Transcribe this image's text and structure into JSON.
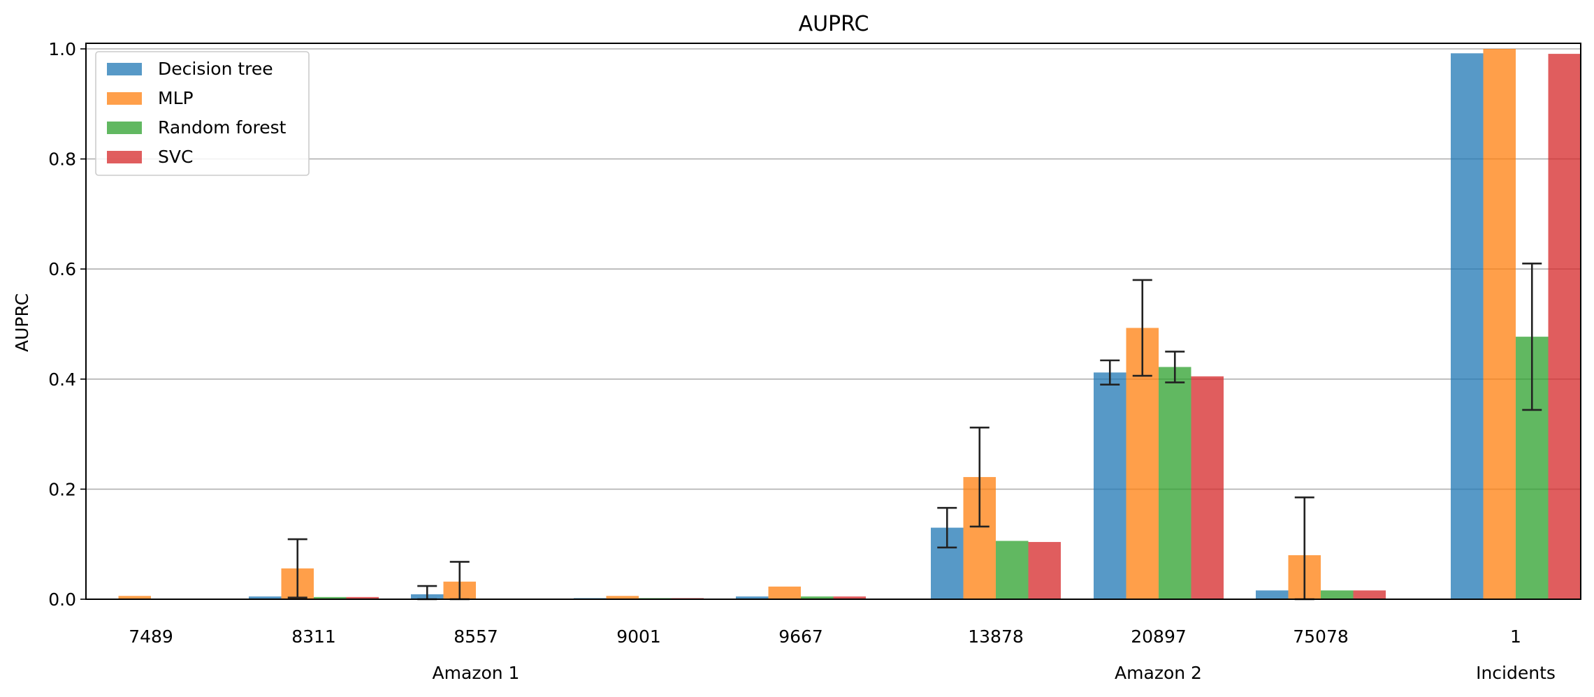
{
  "chart_data": {
    "type": "bar",
    "title": "AUPRC",
    "ylabel": "AUPRC",
    "xlabel": "",
    "ylim": [
      0,
      1.0
    ],
    "yticks": [
      "0.0",
      "0.2",
      "0.4",
      "0.6",
      "0.8",
      "1.0"
    ],
    "grid": "y",
    "legend_position": "top-left",
    "categories": [
      "7489",
      "8311",
      "8557",
      "9001",
      "9667",
      "13878",
      "20897",
      "75078",
      "1"
    ],
    "groups": [
      {
        "label": "Amazon 1",
        "categories": [
          "7489",
          "8311",
          "8557",
          "9001",
          "9667"
        ]
      },
      {
        "label": "Amazon 2",
        "categories": [
          "13878",
          "20897",
          "75078"
        ]
      },
      {
        "label": "Incidents",
        "categories": [
          "1"
        ]
      }
    ],
    "series": [
      {
        "name": "Decision tree",
        "color": "#1f77b4",
        "values": [
          0.001,
          0.005,
          0.009,
          0.002,
          0.005,
          0.13,
          0.412,
          0.016,
          0.992
        ],
        "errors": [
          null,
          null,
          0.015,
          null,
          null,
          0.036,
          0.022,
          null,
          null
        ]
      },
      {
        "name": "MLP",
        "color": "#ff7f0e",
        "values": [
          0.006,
          0.056,
          0.032,
          0.006,
          0.023,
          0.222,
          0.493,
          0.08,
          1.0
        ],
        "errors": [
          null,
          0.053,
          0.036,
          null,
          null,
          0.09,
          0.087,
          0.105,
          null
        ]
      },
      {
        "name": "Random forest",
        "color": "#2ca02c",
        "values": [
          0.001,
          0.004,
          0.001,
          0.002,
          0.005,
          0.106,
          0.422,
          0.016,
          0.477
        ],
        "errors": [
          null,
          null,
          null,
          null,
          null,
          null,
          0.028,
          null,
          0.133
        ]
      },
      {
        "name": "SVC",
        "color": "#d62728",
        "values": [
          0.001,
          0.004,
          0.001,
          0.002,
          0.005,
          0.104,
          0.405,
          0.016,
          0.991
        ],
        "errors": [
          null,
          null,
          null,
          null,
          null,
          null,
          null,
          null,
          null
        ]
      }
    ]
  }
}
